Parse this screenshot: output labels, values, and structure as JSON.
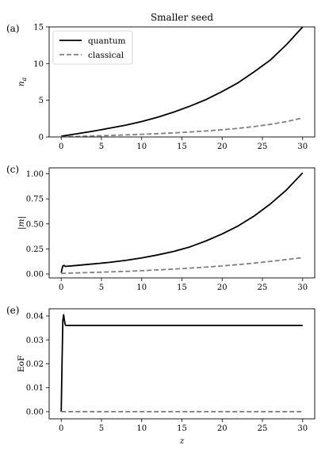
{
  "chart_data": [
    {
      "type": "line",
      "panel_label": "(a)",
      "title": "Smaller seed",
      "xlabel": "",
      "ylabel": "n_a",
      "xlim": [
        -1.5,
        31.5
      ],
      "ylim": [
        0,
        15
      ],
      "xticks": [
        0,
        5,
        10,
        15,
        20,
        25,
        30
      ],
      "yticks": [
        0,
        5,
        10,
        15
      ],
      "legend": {
        "placement": "top-left",
        "entries": [
          "quantum",
          "classical"
        ]
      },
      "grid": false,
      "series": [
        {
          "name": "quantum",
          "color": "#000000",
          "dash": "solid",
          "x": [
            0,
            2,
            4,
            6,
            8,
            10,
            12,
            14,
            16,
            18,
            20,
            22,
            24,
            26,
            28,
            30
          ],
          "values": [
            0.1,
            0.45,
            0.8,
            1.2,
            1.6,
            2.1,
            2.7,
            3.4,
            4.2,
            5.1,
            6.2,
            7.4,
            8.9,
            10.5,
            12.6,
            15.0
          ]
        },
        {
          "name": "classical",
          "color": "#808080",
          "dash": "dashed",
          "x": [
            0,
            2,
            4,
            6,
            8,
            10,
            12,
            14,
            16,
            18,
            20,
            22,
            24,
            26,
            28,
            30
          ],
          "values": [
            0.0,
            0.07,
            0.14,
            0.2,
            0.28,
            0.36,
            0.45,
            0.56,
            0.68,
            0.82,
            0.98,
            1.18,
            1.42,
            1.72,
            2.1,
            2.6
          ]
        }
      ]
    },
    {
      "type": "line",
      "panel_label": "(c)",
      "title": "",
      "xlabel": "",
      "ylabel": "|m|",
      "xlim": [
        -1.5,
        31.5
      ],
      "ylim": [
        -0.04,
        1.06
      ],
      "xticks": [
        0,
        5,
        10,
        15,
        20,
        25,
        30
      ],
      "yticks": [
        0.0,
        0.25,
        0.5,
        0.75,
        1.0
      ],
      "ytick_labels": [
        "0.00",
        "0.25",
        "0.50",
        "0.75",
        "1.00"
      ],
      "grid": false,
      "series": [
        {
          "name": "quantum",
          "color": "#000000",
          "dash": "solid",
          "x": [
            0,
            0.1,
            0.2,
            0.35,
            0.5,
            2,
            4,
            6,
            8,
            10,
            12,
            14,
            16,
            18,
            20,
            22,
            24,
            26,
            28,
            30
          ],
          "values": [
            0.01,
            0.05,
            0.08,
            0.085,
            0.075,
            0.085,
            0.1,
            0.115,
            0.135,
            0.16,
            0.19,
            0.225,
            0.27,
            0.33,
            0.4,
            0.48,
            0.58,
            0.7,
            0.84,
            1.01
          ]
        },
        {
          "name": "classical",
          "color": "#808080",
          "dash": "dashed",
          "x": [
            0,
            2,
            4,
            6,
            8,
            10,
            12,
            14,
            16,
            18,
            20,
            22,
            24,
            26,
            28,
            30
          ],
          "values": [
            0.005,
            0.01,
            0.015,
            0.02,
            0.025,
            0.032,
            0.04,
            0.048,
            0.058,
            0.068,
            0.08,
            0.093,
            0.108,
            0.125,
            0.143,
            0.163
          ]
        }
      ]
    },
    {
      "type": "line",
      "panel_label": "(e)",
      "title": "",
      "xlabel": "z",
      "ylabel": "EoF",
      "xlim": [
        -1.5,
        31.5
      ],
      "ylim": [
        -0.003,
        0.043
      ],
      "xticks": [
        0,
        5,
        10,
        15,
        20,
        25,
        30
      ],
      "yticks": [
        0.0,
        0.01,
        0.02,
        0.03,
        0.04
      ],
      "ytick_labels": [
        "0.00",
        "0.01",
        "0.02",
        "0.03",
        "0.04"
      ],
      "grid": false,
      "series": [
        {
          "name": "quantum",
          "color": "#000000",
          "dash": "solid",
          "x": [
            0,
            0.1,
            0.2,
            0.3,
            0.4,
            0.5,
            0.6,
            1,
            5,
            10,
            15,
            20,
            25,
            30
          ],
          "values": [
            0.0,
            0.02,
            0.038,
            0.0405,
            0.038,
            0.0363,
            0.036,
            0.036,
            0.036,
            0.036,
            0.036,
            0.036,
            0.036,
            0.036
          ]
        },
        {
          "name": "classical",
          "color": "#808080",
          "dash": "dashed",
          "x": [
            0,
            30
          ],
          "values": [
            0.0,
            0.0
          ]
        }
      ]
    }
  ]
}
